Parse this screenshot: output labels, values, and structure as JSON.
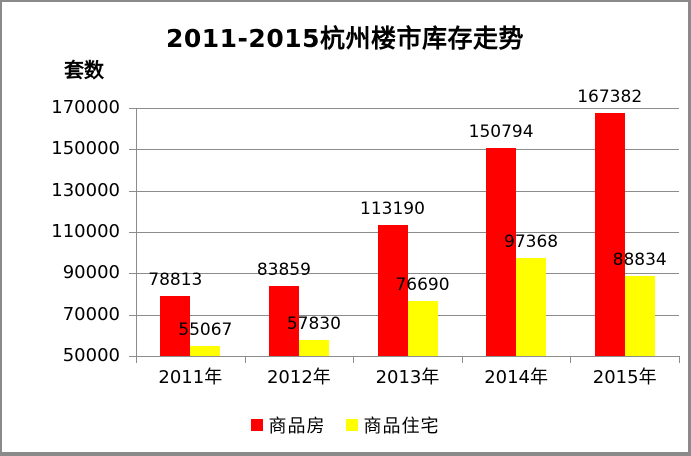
{
  "chart_data": {
    "type": "bar",
    "title": "2011-2015杭州楼市库存走势",
    "xlabel": "",
    "ylabel": "套数",
    "categories": [
      "2011年",
      "2012年",
      "2013年",
      "2014年",
      "2015年"
    ],
    "series": [
      {
        "name": "商品房",
        "color": "#ff0000",
        "values": [
          78813,
          83859,
          113190,
          150794,
          167382
        ]
      },
      {
        "name": "商品住宅",
        "color": "#ffff00",
        "values": [
          55067,
          57830,
          76690,
          97368,
          88834
        ]
      }
    ],
    "ylim": [
      50000,
      170000
    ],
    "ytick_step": 20000,
    "yticks": [
      50000,
      70000,
      90000,
      110000,
      130000,
      150000,
      170000
    ],
    "grid": true,
    "data_labels": true,
    "legend_position": "bottom"
  },
  "colors": {
    "grid": "#8c8c8c",
    "axis": "#8c8c8c",
    "frame_border": "#8a8a8a",
    "text": "#000000",
    "background": "#ffffff"
  }
}
